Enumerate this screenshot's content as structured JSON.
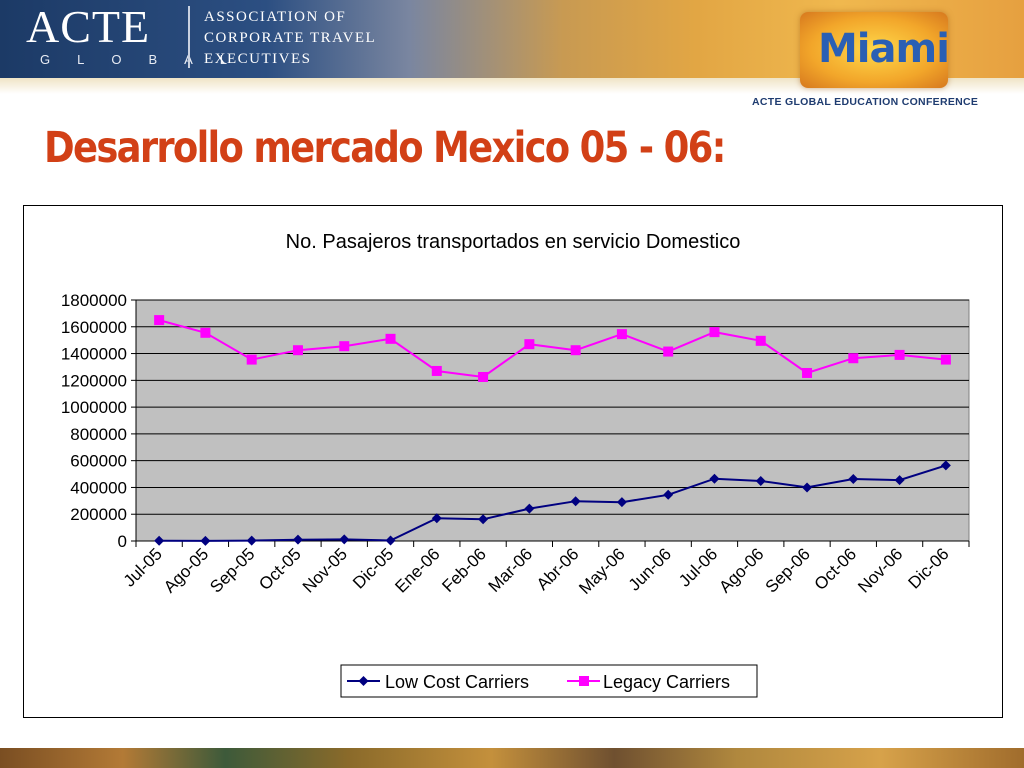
{
  "header": {
    "logo": "ACTE",
    "logo_sub": "GLOBAL",
    "association": [
      "ASSOCIATION OF",
      "CORPORATE TRAVEL",
      "EXECUTIVES"
    ],
    "event": "Miami",
    "conference": "ACTE GLOBAL EDUCATION CONFERENCE"
  },
  "slide": {
    "title": "Desarrollo mercado Mexico 05 - 06:"
  },
  "colors": {
    "low_cost": "#000080",
    "legacy": "#ff00ff",
    "plot_bg": "#c0c0c0",
    "title_red": "#d24016"
  },
  "chart_data": {
    "type": "line",
    "title": "No. Pasajeros transportados en servicio Domestico",
    "xlabel": "",
    "ylabel": "",
    "categories": [
      "Jul-05",
      "Ago-05",
      "Sep-05",
      "Oct-05",
      "Nov-05",
      "Dic-05",
      "Ene-06",
      "Feb-06",
      "Mar-06",
      "Abr-06",
      "May-06",
      "Jun-06",
      "Jul-06",
      "Ago-06",
      "Sep-06",
      "Oct-06",
      "Nov-06",
      "Dic-06"
    ],
    "ylim": [
      0,
      1800000
    ],
    "yticks": [
      "0",
      "200000",
      "400000",
      "600000",
      "800000",
      "1000000",
      "1200000",
      "1400000",
      "1600000",
      "1800000"
    ],
    "grid": true,
    "legend_position": "bottom",
    "series": [
      {
        "name": "Low Cost Carriers",
        "marker": "diamond",
        "values": [
          2000,
          1000,
          3000,
          10000,
          12000,
          4000,
          170000,
          162000,
          242000,
          297000,
          290000,
          345000,
          465000,
          448000,
          400000,
          463000,
          455000,
          565000
        ]
      },
      {
        "name": "Legacy Carriers",
        "marker": "square",
        "values": [
          1650000,
          1555000,
          1355000,
          1425000,
          1455000,
          1510000,
          1270000,
          1225000,
          1470000,
          1425000,
          1545000,
          1415000,
          1560000,
          1495000,
          1255000,
          1365000,
          1390000,
          1355000
        ]
      }
    ]
  }
}
